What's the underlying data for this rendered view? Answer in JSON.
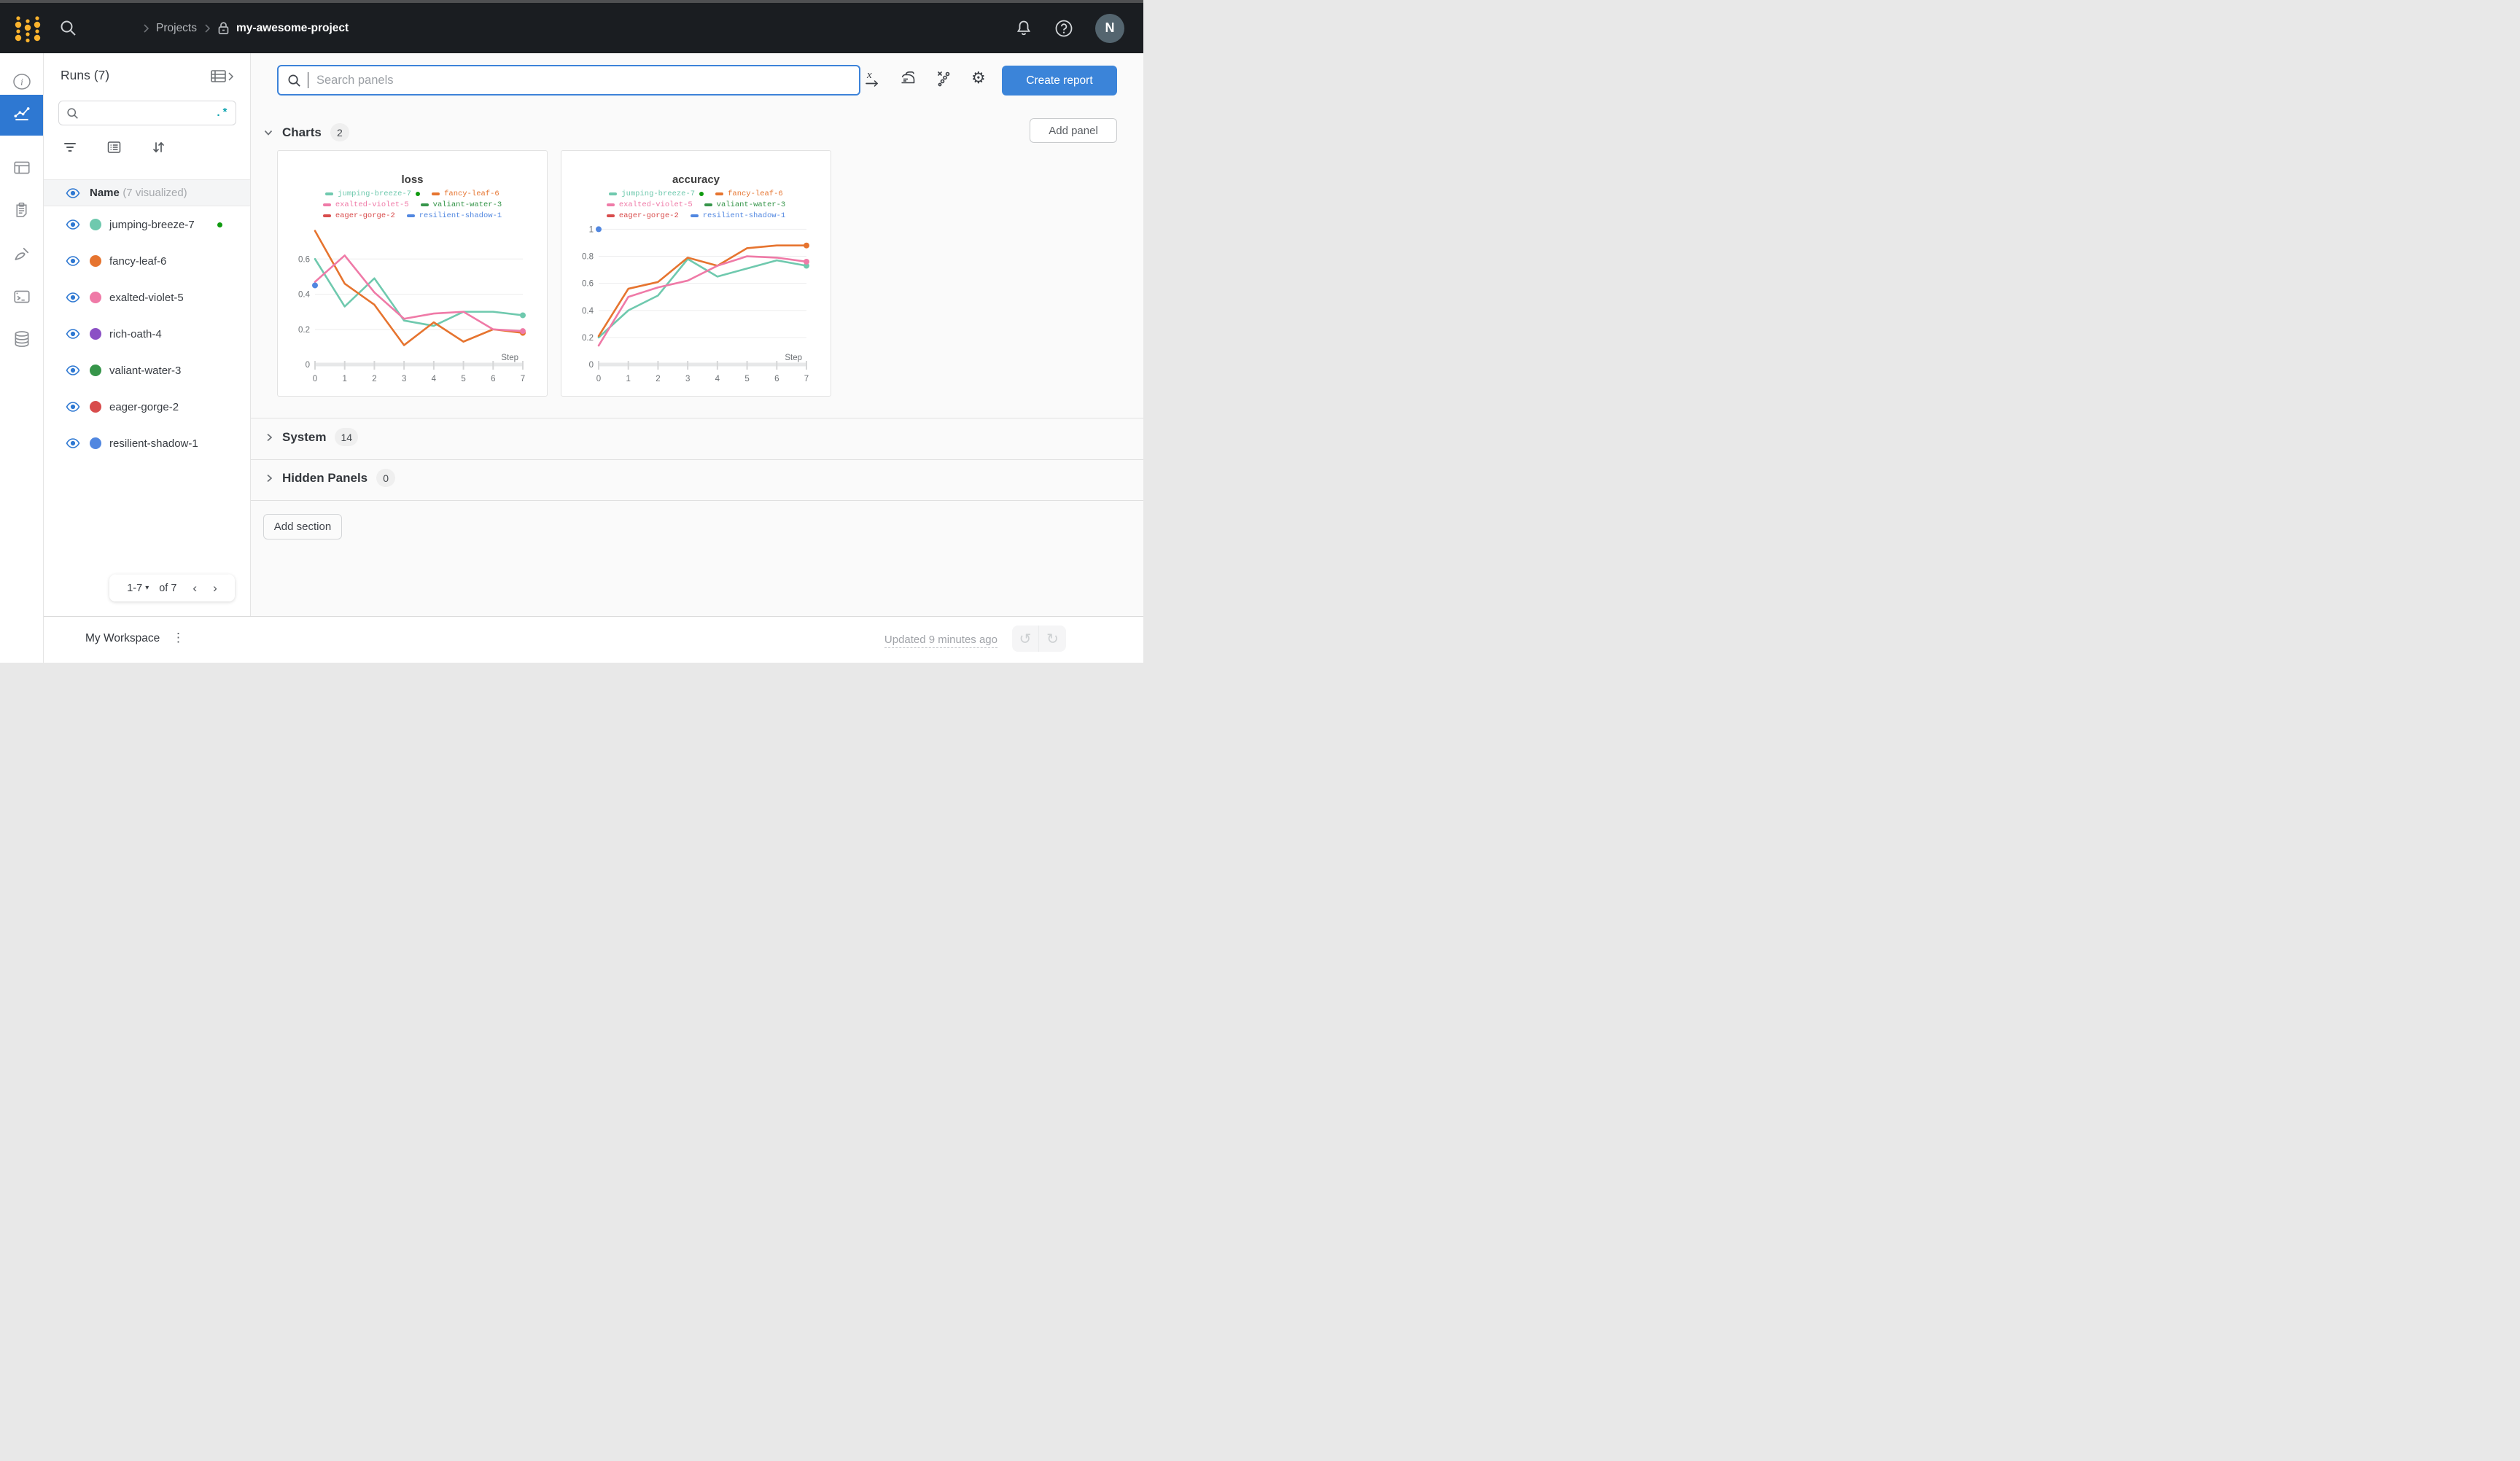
{
  "topbar": {
    "breadcrumb": {
      "level1": "Projects",
      "level2": "my-awesome-project"
    },
    "avatar_initial": "N"
  },
  "rail": {
    "items": [
      "overview",
      "workspace",
      "runs-table",
      "jobs",
      "sweeps",
      "logs",
      "artifacts"
    ],
    "selected": "workspace"
  },
  "runs_panel": {
    "title": "Runs (7)",
    "regex_icon": ".*",
    "header": {
      "name": "Name",
      "sub": "(7 visualized)"
    },
    "runs": [
      {
        "name": "jumping-breeze-7",
        "color": "#6fc9ae",
        "running": true
      },
      {
        "name": "fancy-leaf-6",
        "color": "#e6742f"
      },
      {
        "name": "exalted-violet-5",
        "color": "#ef7aa7"
      },
      {
        "name": "rich-oath-4",
        "color": "#8b50c5"
      },
      {
        "name": "valiant-water-3",
        "color": "#36954a"
      },
      {
        "name": "eager-gorge-2",
        "color": "#d84c4c"
      },
      {
        "name": "resilient-shadow-1",
        "color": "#5187e0"
      }
    ],
    "pagination": {
      "range": "1-7",
      "of": "of 7"
    }
  },
  "main": {
    "search": {
      "placeholder": "Search panels"
    },
    "create_report_label": "Create report",
    "add_panel_label": "Add panel",
    "sections": {
      "charts": {
        "label": "Charts",
        "count": "2"
      },
      "system": {
        "label": "System",
        "count": "14"
      },
      "hidden": {
        "label": "Hidden Panels",
        "count": "0"
      }
    },
    "add_section_label": "Add section"
  },
  "footer": {
    "workspace_label": "My Workspace",
    "updated_text": "Updated 9 minutes ago"
  },
  "icons": {
    "gear": "⚙",
    "undo": "↺",
    "redo": "↻",
    "kebab": "⋮",
    "dropdown_caret": "▾"
  },
  "colors": {
    "accent_blue": "#2e78d2",
    "topbar_bg": "#1a1d21",
    "brand_yellow": "#fcb32d",
    "run_live_green": "#0f9a0f",
    "button_blue": "#3b84d9"
  },
  "chart_data": [
    {
      "type": "line",
      "title": "loss",
      "xlabel": "Step",
      "x": [
        0,
        1,
        2,
        3,
        4,
        5,
        6,
        7
      ],
      "yticks": [
        0,
        0.2,
        0.4,
        0.6
      ],
      "ylim": [
        0,
        0.8
      ],
      "grid": true,
      "legend_position": "top",
      "series": [
        {
          "name": "jumping-breeze-7",
          "color": "#6fc9ae",
          "running": true,
          "end_dot": true,
          "values": [
            0.6,
            0.33,
            0.49,
            0.25,
            0.22,
            0.3,
            0.3,
            0.28
          ]
        },
        {
          "name": "fancy-leaf-6",
          "color": "#e6742f",
          "end_dot": true,
          "values": [
            0.76,
            0.46,
            0.34,
            0.11,
            0.24,
            0.13,
            0.2,
            0.18
          ]
        },
        {
          "name": "exalted-violet-5",
          "color": "#ef7aa7",
          "end_dot": true,
          "values": [
            0.47,
            0.62,
            0.41,
            0.26,
            0.29,
            0.3,
            0.2,
            0.19
          ]
        },
        {
          "name": "valiant-water-3",
          "color": "#36954a",
          "values": []
        },
        {
          "name": "eager-gorge-2",
          "color": "#d84c4c",
          "values": []
        },
        {
          "name": "resilient-shadow-1",
          "color": "#5187e0",
          "values": [
            0.45
          ]
        }
      ]
    },
    {
      "type": "line",
      "title": "accuracy",
      "xlabel": "Step",
      "x": [
        0,
        1,
        2,
        3,
        4,
        5,
        6,
        7
      ],
      "yticks": [
        0,
        0.2,
        0.4,
        0.6,
        0.8,
        1
      ],
      "ylim": [
        0,
        1.04
      ],
      "grid": true,
      "legend_position": "top",
      "series": [
        {
          "name": "jumping-breeze-7",
          "color": "#6fc9ae",
          "running": true,
          "end_dot": true,
          "values": [
            0.2,
            0.4,
            0.51,
            0.78,
            0.65,
            0.71,
            0.77,
            0.73
          ]
        },
        {
          "name": "fancy-leaf-6",
          "color": "#e6742f",
          "end_dot": true,
          "values": [
            0.21,
            0.56,
            0.61,
            0.79,
            0.73,
            0.86,
            0.88,
            0.88
          ]
        },
        {
          "name": "exalted-violet-5",
          "color": "#ef7aa7",
          "end_dot": true,
          "values": [
            0.14,
            0.5,
            0.57,
            0.62,
            0.73,
            0.8,
            0.79,
            0.76
          ]
        },
        {
          "name": "valiant-water-3",
          "color": "#36954a",
          "values": []
        },
        {
          "name": "eager-gorge-2",
          "color": "#d84c4c",
          "values": []
        },
        {
          "name": "resilient-shadow-1",
          "color": "#5187e0",
          "values": [
            1.0
          ]
        }
      ]
    }
  ]
}
